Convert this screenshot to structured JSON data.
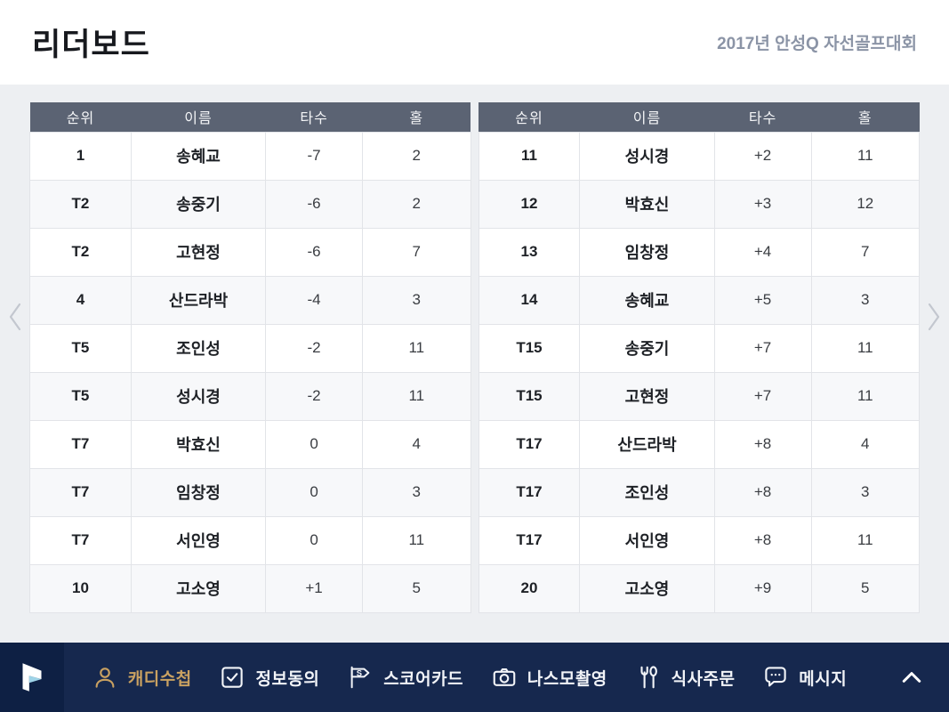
{
  "page": {
    "title": "리더보드",
    "subtitle": "2017년 안성Q 자선골프대회"
  },
  "columns": [
    "순위",
    "이름",
    "타수",
    "홀"
  ],
  "tables": [
    {
      "side": "left",
      "rows": [
        [
          "1",
          "송혜교",
          "-7",
          "2"
        ],
        [
          "T2",
          "송중기",
          "-6",
          "2"
        ],
        [
          "T2",
          "고현정",
          "-6",
          "7"
        ],
        [
          "4",
          "산드라박",
          "-4",
          "3"
        ],
        [
          "T5",
          "조인성",
          "-2",
          "11"
        ],
        [
          "T5",
          "성시경",
          "-2",
          "11"
        ],
        [
          "T7",
          "박효신",
          "0",
          "4"
        ],
        [
          "T7",
          "임창정",
          "0",
          "3"
        ],
        [
          "T7",
          "서인영",
          "0",
          "11"
        ],
        [
          "10",
          "고소영",
          "+1",
          "5"
        ]
      ]
    },
    {
      "side": "right",
      "rows": [
        [
          "11",
          "성시경",
          "+2",
          "11"
        ],
        [
          "12",
          "박효신",
          "+3",
          "12"
        ],
        [
          "13",
          "임창정",
          "+4",
          "7"
        ],
        [
          "14",
          "송혜교",
          "+5",
          "3"
        ],
        [
          "T15",
          "송중기",
          "+7",
          "11"
        ],
        [
          "T15",
          "고현정",
          "+7",
          "11"
        ],
        [
          "T17",
          "산드라박",
          "+8",
          "4"
        ],
        [
          "T17",
          "조인성",
          "+8",
          "3"
        ],
        [
          "T17",
          "서인영",
          "+8",
          "11"
        ],
        [
          "20",
          "고소영",
          "+9",
          "5"
        ]
      ]
    }
  ],
  "nav": {
    "items": [
      {
        "id": "caddie-book",
        "icon": "person-icon",
        "label": "캐디수첩",
        "active": true
      },
      {
        "id": "info-consent",
        "icon": "check-square-icon",
        "label": "정보동의",
        "active": false
      },
      {
        "id": "scorecard",
        "icon": "scorecard-flag-icon",
        "label": "스코어카드",
        "active": false
      },
      {
        "id": "nasmo-shoot",
        "icon": "camera-icon",
        "label": "나스모촬영",
        "active": false
      },
      {
        "id": "meal-order",
        "icon": "fork-spoon-icon",
        "label": "식사주문",
        "active": false
      },
      {
        "id": "message",
        "icon": "message-bubble-icon",
        "label": "메시지",
        "active": false
      }
    ]
  },
  "colors": {
    "table_header_bg": "#5b6373",
    "nav_bg": "#16284e",
    "active_gold": "#c9a161",
    "subtitle_gray": "#8b94a6",
    "page_bg": "#edeff2"
  }
}
